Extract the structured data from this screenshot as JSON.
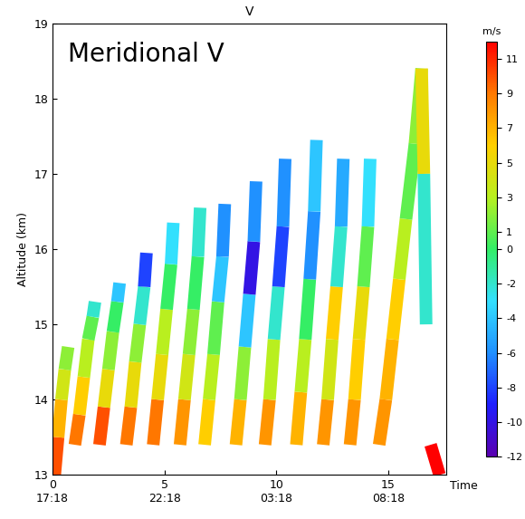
{
  "chart_data": {
    "type": "profile",
    "title": "V",
    "annotation": "Meridional V",
    "y_label": "Altitude (km)",
    "x_label": "Time",
    "xlim": [
      0,
      17.6
    ],
    "xticks": [
      {
        "value": 0,
        "label": "0\n17:18"
      },
      {
        "value": 5,
        "label": "5\n22:18"
      },
      {
        "value": 10,
        "label": "10\n03:18"
      },
      {
        "value": 15,
        "label": "15\n08:18"
      }
    ],
    "ylim": [
      13,
      19
    ],
    "yticks": [
      13,
      14,
      15,
      16,
      17,
      18,
      19
    ],
    "colorbar_label": "m/s",
    "colorbar_range": [
      -12,
      12
    ],
    "colorbar_ticks": [
      -12,
      -10,
      -8,
      -6,
      -4,
      -2,
      0,
      1,
      3,
      5,
      7,
      9,
      11
    ],
    "profiles": [
      {
        "x": [
          0.1,
          0.25,
          0.4,
          0.55,
          0.7
        ],
        "y": [
          13.0,
          13.5,
          14.0,
          14.4,
          14.7
        ],
        "values": [
          10,
          7,
          4,
          2,
          -3
        ]
      },
      {
        "x": [
          1.0,
          1.2,
          1.4,
          1.6,
          1.8,
          1.9
        ],
        "y": [
          13.4,
          13.8,
          14.3,
          14.8,
          15.1,
          15.3
        ],
        "values": [
          9,
          6,
          3,
          1,
          -2,
          -4
        ]
      },
      {
        "x": [
          2.1,
          2.3,
          2.5,
          2.7,
          2.9,
          3.0
        ],
        "y": [
          13.4,
          13.9,
          14.4,
          14.9,
          15.3,
          15.55
        ],
        "values": [
          10,
          5,
          2,
          0,
          -4,
          -5
        ]
      },
      {
        "x": [
          3.3,
          3.5,
          3.7,
          3.9,
          4.1,
          4.2
        ],
        "y": [
          13.4,
          13.9,
          14.5,
          15.0,
          15.5,
          15.95
        ],
        "values": [
          9,
          5,
          2,
          -2,
          -8,
          -5
        ]
      },
      {
        "x": [
          4.5,
          4.7,
          4.9,
          5.1,
          5.3,
          5.4
        ],
        "y": [
          13.4,
          14.0,
          14.6,
          15.2,
          15.8,
          16.35
        ],
        "values": [
          9,
          5,
          3,
          0,
          -3,
          -4
        ]
      },
      {
        "x": [
          5.7,
          5.9,
          6.1,
          6.3,
          6.5,
          6.6
        ],
        "y": [
          13.4,
          14.0,
          14.6,
          15.2,
          15.9,
          16.55
        ],
        "values": [
          8,
          4,
          2,
          0,
          -2,
          -3
        ]
      },
      {
        "x": [
          6.8,
          7.0,
          7.2,
          7.4,
          7.6,
          7.7
        ],
        "y": [
          13.4,
          14.0,
          14.6,
          15.3,
          15.9,
          16.6
        ],
        "values": [
          6,
          3,
          1,
          -4,
          -6,
          -2
        ]
      },
      {
        "x": [
          8.2,
          8.4,
          8.6,
          8.8,
          9.0,
          9.1
        ],
        "y": [
          13.4,
          14.0,
          14.7,
          15.4,
          16.1,
          16.9
        ],
        "values": [
          7,
          2,
          -4,
          -10,
          -6,
          -8
        ]
      },
      {
        "x": [
          9.5,
          9.7,
          9.9,
          10.1,
          10.3,
          10.4
        ],
        "y": [
          13.4,
          14.0,
          14.8,
          15.5,
          16.3,
          17.2
        ],
        "values": [
          8,
          3,
          -2,
          -8,
          -6,
          -4
        ]
      },
      {
        "x": [
          10.9,
          11.1,
          11.3,
          11.5,
          11.7,
          11.8
        ],
        "y": [
          13.4,
          14.1,
          14.8,
          15.6,
          16.5,
          17.45
        ],
        "values": [
          7,
          3,
          0,
          -6,
          -4,
          -2
        ]
      },
      {
        "x": [
          12.1,
          12.3,
          12.5,
          12.7,
          12.9,
          13.0
        ],
        "y": [
          13.4,
          14.0,
          14.8,
          15.5,
          16.3,
          17.2
        ],
        "values": [
          8,
          4,
          6,
          -2,
          -5,
          -4
        ]
      },
      {
        "x": [
          13.3,
          13.5,
          13.7,
          13.9,
          14.1,
          14.2
        ],
        "y": [
          13.4,
          14.0,
          14.8,
          15.5,
          16.3,
          17.2
        ],
        "values": [
          8,
          6,
          5,
          1,
          -3,
          -4
        ]
      },
      {
        "x": [
          14.6,
          14.9,
          15.2,
          15.5,
          15.8,
          16.2,
          16.5
        ],
        "y": [
          13.4,
          14.0,
          14.8,
          15.6,
          16.4,
          17.4,
          18.4
        ],
        "values": [
          8,
          7,
          6,
          3,
          1,
          2,
          6
        ]
      },
      {
        "x": [
          16.5,
          16.6,
          16.7
        ],
        "y": [
          18.4,
          17.0,
          15.0
        ],
        "values": [
          5,
          -2,
          -8
        ]
      },
      {
        "x": [
          16.9,
          17.3
        ],
        "y": [
          13.4,
          13.0
        ],
        "values": [
          12,
          12
        ]
      }
    ]
  }
}
